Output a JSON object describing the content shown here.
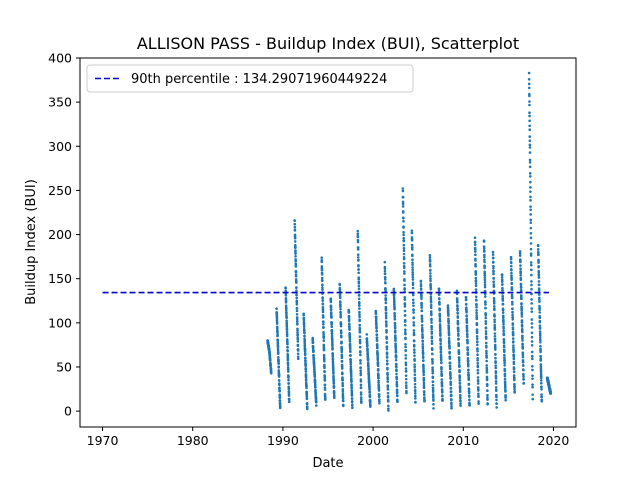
{
  "chart_data": {
    "type": "scatter",
    "title": "ALLISON PASS - Buildup Index (BUI), Scatterplot",
    "xlabel": "Date",
    "ylabel": "Buildup Index (BUI)",
    "xlim": [
      1967.5,
      2022.5
    ],
    "ylim": [
      -18,
      400
    ],
    "x_ticks": [
      1970,
      1980,
      1990,
      2000,
      2010,
      2020
    ],
    "y_ticks": [
      0,
      50,
      100,
      150,
      200,
      250,
      300,
      350,
      400
    ],
    "grid": false,
    "legend_position": "top-left",
    "reference_line": {
      "label": "90th percentile : 134.29071960449224",
      "value": 134.29071960449224,
      "x_range": [
        1970,
        2019.5
      ],
      "style": "dashed",
      "color": "#0000cc"
    },
    "series": [
      {
        "color": "#1f77b4",
        "seasons": [
          {
            "year": 1988,
            "values": [
              80,
              68,
              44
            ]
          },
          {
            "year": 1989,
            "values": [
              115,
              4
            ]
          },
          {
            "year": 1990,
            "values": [
              140,
              10
            ]
          },
          {
            "year": 1991,
            "values": [
              217,
              60
            ]
          },
          {
            "year": 1992,
            "values": [
              110,
              3
            ]
          },
          {
            "year": 1993,
            "values": [
              82,
              8
            ]
          },
          {
            "year": 1994,
            "values": [
              172,
              12
            ]
          },
          {
            "year": 1995,
            "values": [
              127,
              15
            ]
          },
          {
            "year": 1996,
            "values": [
              145,
              5
            ]
          },
          {
            "year": 1997,
            "values": [
              115,
              5
            ]
          },
          {
            "year": 1998,
            "values": [
              204,
              8
            ]
          },
          {
            "year": 1999,
            "values": [
              85,
              5
            ]
          },
          {
            "year": 2000,
            "values": [
              115,
              10
            ]
          },
          {
            "year": 2001,
            "values": [
              167,
              2
            ]
          },
          {
            "year": 2002,
            "values": [
              140,
              10
            ]
          },
          {
            "year": 2003,
            "values": [
              251,
              20
            ]
          },
          {
            "year": 2004,
            "values": [
              204,
              8
            ]
          },
          {
            "year": 2005,
            "values": [
              148,
              10
            ]
          },
          {
            "year": 2006,
            "values": [
              178,
              5
            ]
          },
          {
            "year": 2007,
            "values": [
              140,
              10
            ]
          },
          {
            "year": 2008,
            "values": [
              120,
              5
            ]
          },
          {
            "year": 2009,
            "values": [
              135,
              8
            ]
          },
          {
            "year": 2010,
            "values": [
              130,
              5
            ]
          },
          {
            "year": 2011,
            "values": [
              195,
              10
            ]
          },
          {
            "year": 2012,
            "values": [
              193,
              8
            ]
          },
          {
            "year": 2013,
            "values": [
              180,
              5
            ]
          },
          {
            "year": 2014,
            "values": [
              155,
              12
            ]
          },
          {
            "year": 2015,
            "values": [
              173,
              20
            ]
          },
          {
            "year": 2016,
            "values": [
              180,
              30
            ]
          },
          {
            "year": 2017,
            "values": [
              382,
              15
            ]
          },
          {
            "year": 2018,
            "values": [
              188,
              10
            ]
          },
          {
            "year": 2019,
            "values": [
              38,
              20
            ]
          }
        ]
      }
    ]
  }
}
